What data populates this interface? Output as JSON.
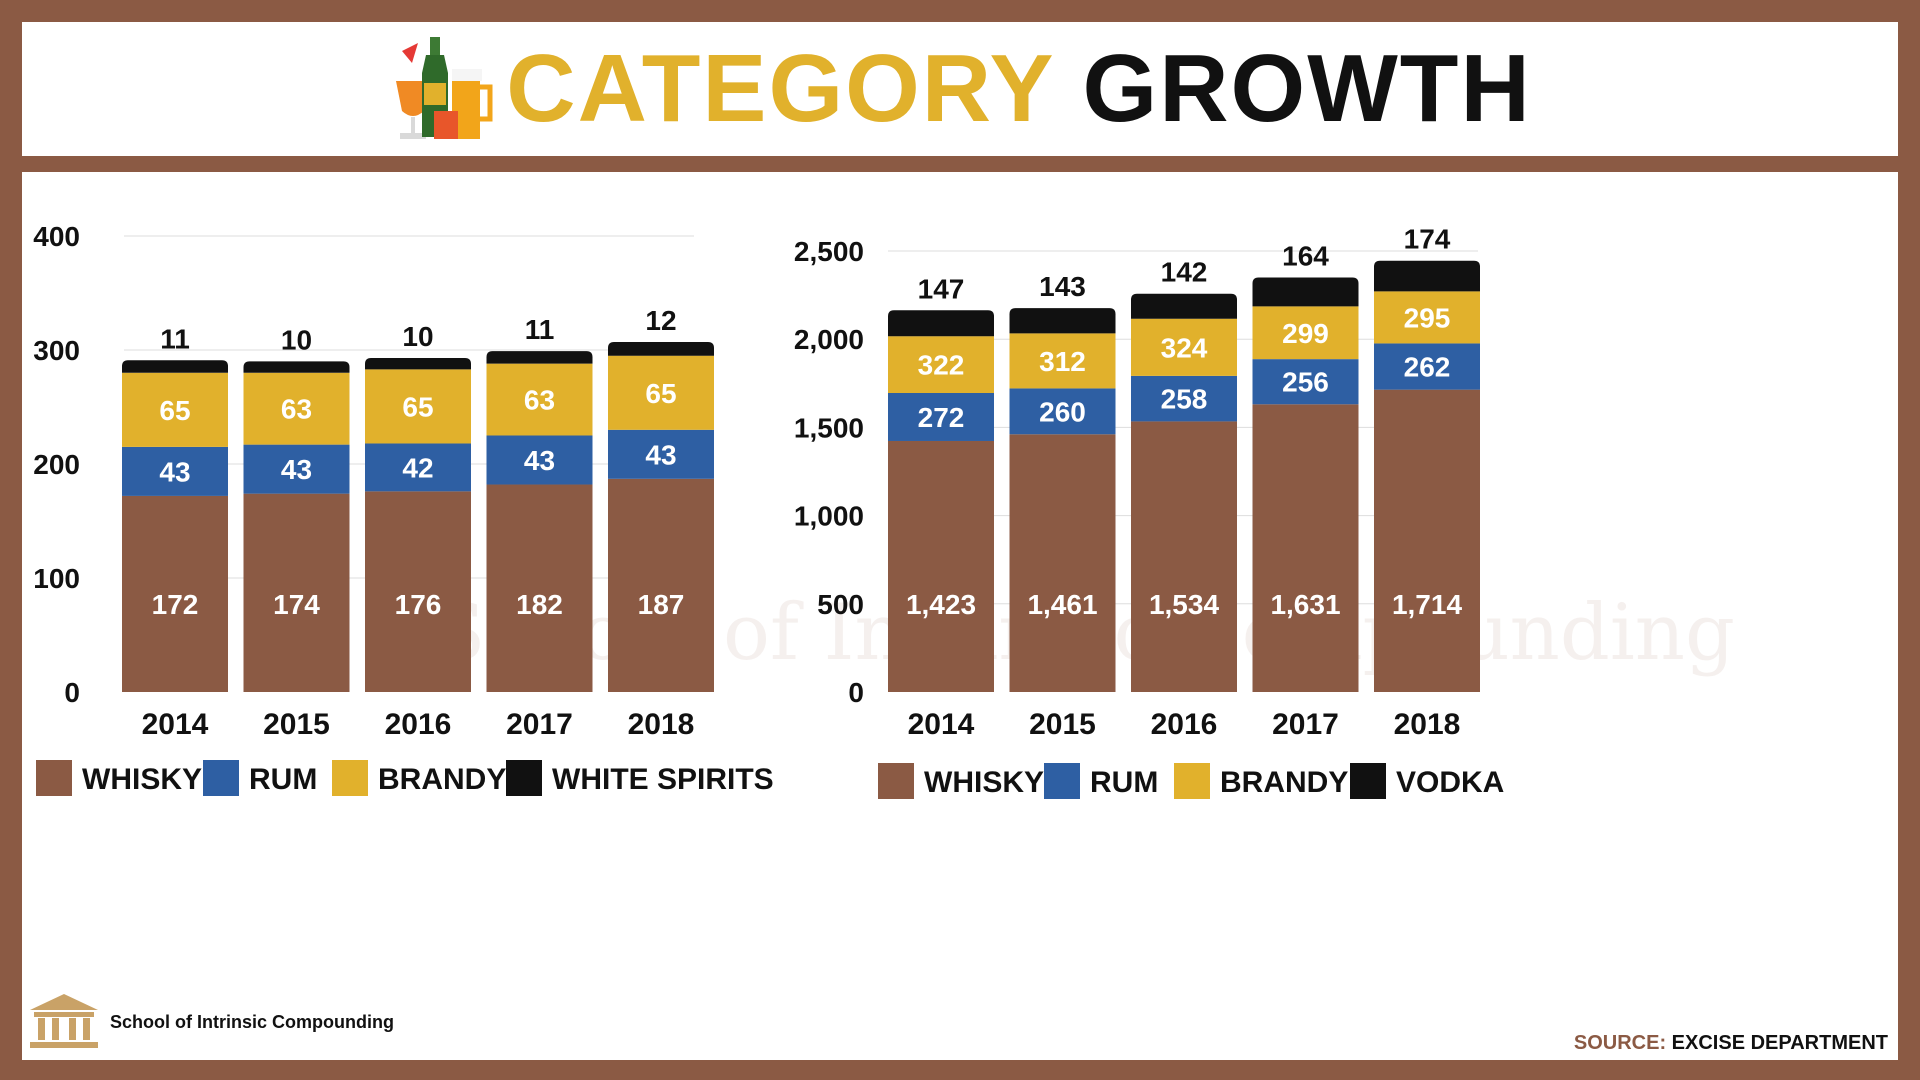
{
  "header": {
    "title_part1": "CATEGORY",
    "title_part2": "GROWTH",
    "icon": "drinks-icon"
  },
  "watermark": "School of Intrinsic Compounding",
  "footer": {
    "brand_name": "School of Intrinsic Compounding",
    "brand_icon": "temple-icon",
    "source_label": "SOURCE:",
    "source_value": "EXCISE DEPARTMENT"
  },
  "colors": {
    "whisky": "#8b5a44",
    "rum": "#2e5fa3",
    "brandy": "#e1b12c",
    "top": "#111111",
    "accent": "#e1b12c",
    "frame": "#8b5a44"
  },
  "chart_data": [
    {
      "type": "bar",
      "stacked": true,
      "categories": [
        "2014",
        "2015",
        "2016",
        "2017",
        "2018"
      ],
      "series": [
        {
          "name": "WHISKY",
          "color": "#8b5a44",
          "values": [
            172,
            174,
            176,
            182,
            187
          ]
        },
        {
          "name": "RUM",
          "color": "#2e5fa3",
          "values": [
            43,
            43,
            42,
            43,
            43
          ]
        },
        {
          "name": "BRANDY",
          "color": "#e1b12c",
          "values": [
            65,
            63,
            65,
            63,
            65
          ]
        },
        {
          "name": "WHITE SPIRITS",
          "color": "#111111",
          "values": [
            11,
            10,
            10,
            11,
            12
          ]
        }
      ],
      "ylim": [
        0,
        400
      ],
      "yticks": [
        0,
        100,
        200,
        300,
        400
      ],
      "ytick_labels": [
        "0",
        "100",
        "200",
        "300",
        "400"
      ],
      "grid": true,
      "legend": "bottom"
    },
    {
      "type": "bar",
      "stacked": true,
      "categories": [
        "2014",
        "2015",
        "2016",
        "2017",
        "2018"
      ],
      "series": [
        {
          "name": "WHISKY",
          "color": "#8b5a44",
          "values": [
            1423,
            1461,
            1534,
            1631,
            1714
          ],
          "labels": [
            "1,423",
            "1,461",
            "1,534",
            "1,631",
            "1,714"
          ]
        },
        {
          "name": "RUM",
          "color": "#2e5fa3",
          "values": [
            272,
            260,
            258,
            256,
            262
          ]
        },
        {
          "name": "BRANDY",
          "color": "#e1b12c",
          "values": [
            322,
            312,
            324,
            299,
            295
          ]
        },
        {
          "name": "VODKA",
          "color": "#111111",
          "values": [
            147,
            143,
            142,
            164,
            174
          ]
        }
      ],
      "ylim": [
        0,
        2500
      ],
      "yticks": [
        0,
        500,
        1000,
        1500,
        2000,
        2500
      ],
      "ytick_labels": [
        "0",
        "500",
        "1,000",
        "1,500",
        "2,000",
        "2,500"
      ],
      "grid": true,
      "legend": "bottom"
    }
  ]
}
